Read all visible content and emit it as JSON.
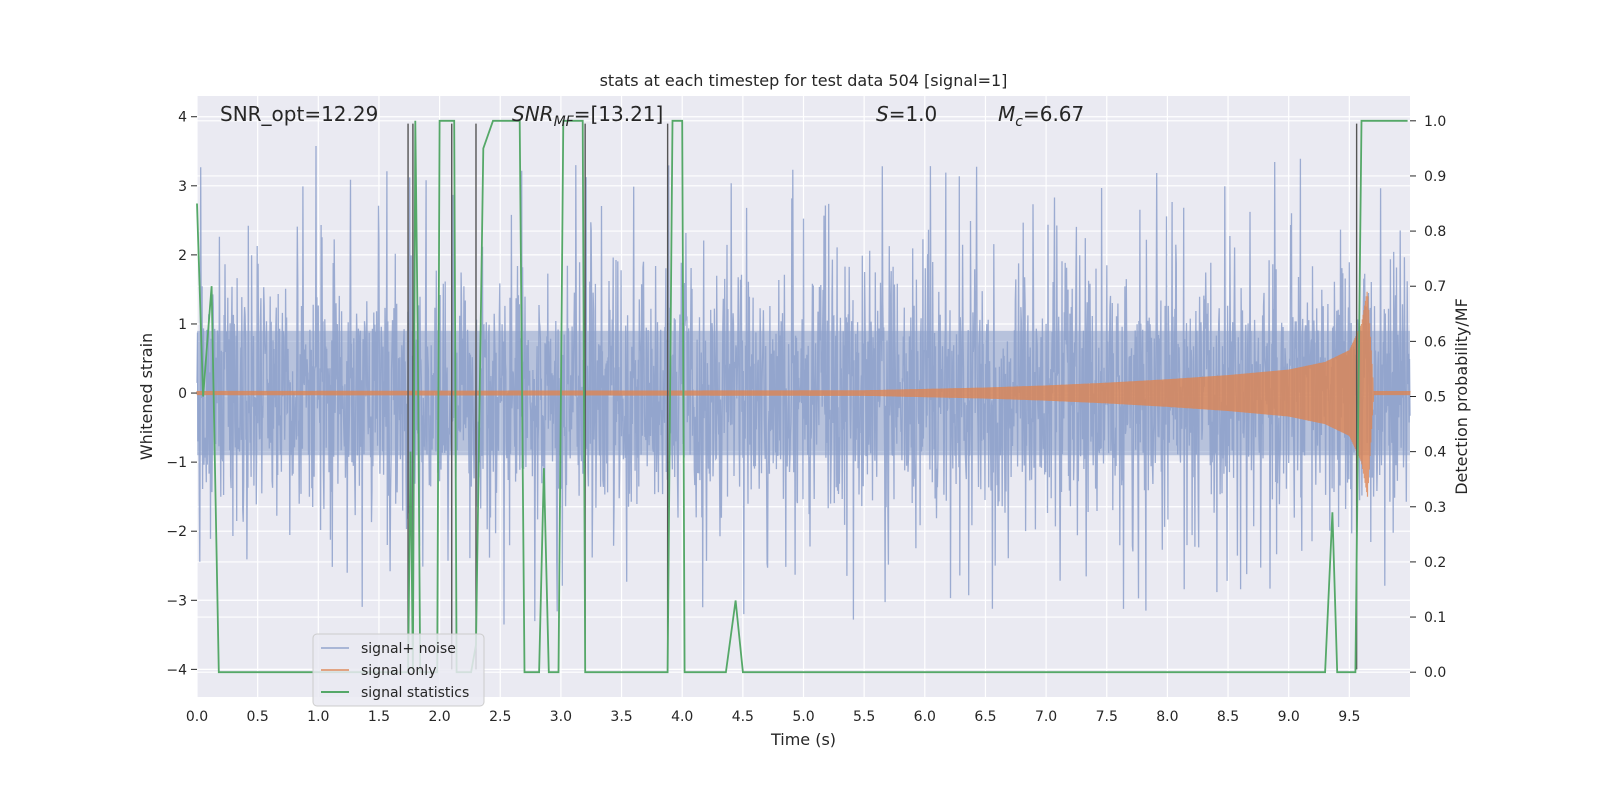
{
  "chart_data": {
    "type": "line",
    "title": "stats at each timestep for test data 504 [signal=1]",
    "xlabel": "Time (s)",
    "ylabel": "Whitened strain",
    "y2label": "Detection probability/MF",
    "xlim": [
      0.0,
      10.0
    ],
    "ylim": [
      -4.4,
      4.3
    ],
    "y2lim": [
      -0.045,
      1.045
    ],
    "x_ticks": [
      0.0,
      0.5,
      1.0,
      1.5,
      2.0,
      2.5,
      3.0,
      3.5,
      4.0,
      4.5,
      5.0,
      5.5,
      6.0,
      6.5,
      7.0,
      7.5,
      8.0,
      8.5,
      9.0,
      9.5
    ],
    "x_tick_labels": [
      "0.0",
      "0.5",
      "1.0",
      "1.5",
      "2.0",
      "2.5",
      "3.0",
      "3.5",
      "4.0",
      "4.5",
      "5.0",
      "5.5",
      "6.0",
      "6.5",
      "7.0",
      "7.5",
      "8.0",
      "8.5",
      "9.0",
      "9.5"
    ],
    "y_ticks": [
      4,
      3,
      2,
      1,
      0,
      -1,
      -2,
      -3,
      -4
    ],
    "y_tick_labels": [
      "4",
      "3",
      "2",
      "1",
      "0",
      "−1",
      "−2",
      "−3",
      "−4"
    ],
    "y2_ticks": [
      1.0,
      0.9,
      0.8,
      0.7,
      0.6,
      0.5,
      0.4,
      0.3,
      0.2,
      0.1,
      0.0
    ],
    "y2_tick_labels": [
      "1.0",
      "0.9",
      "0.8",
      "0.7",
      "0.6",
      "0.5",
      "0.4",
      "0.3",
      "0.2",
      "0.1",
      "0.0"
    ],
    "grid": true,
    "legend_position": "lower-left",
    "annotations": {
      "snr_opt": "SNR_opt=12.29",
      "snr_mf_base": "SNR",
      "snr_mf_sub": "MF",
      "snr_mf_value": "=[13.21]",
      "s_sym": "S",
      "s_value": "=1.0",
      "mc_sym": "M",
      "mc_sub": "c",
      "mc_value": "=6.67"
    },
    "series": [
      {
        "name": "signal+ noise",
        "axis": "left",
        "color": "#8da0cb",
        "noise_band": {
          "x_start": 0.0,
          "x_end": 10.0,
          "typical_amplitude": 1.6,
          "peak_high": 3.9,
          "peak_low": -4.0
        }
      },
      {
        "name": "signal only",
        "axis": "left",
        "color": "#dd8452",
        "chirp_envelope": {
          "x": [
            0.0,
            5.5,
            6.5,
            7.0,
            7.5,
            8.0,
            8.5,
            9.0,
            9.3,
            9.5,
            9.6,
            9.65,
            9.7,
            10.0
          ],
          "amp": [
            0.03,
            0.04,
            0.08,
            0.11,
            0.15,
            0.2,
            0.26,
            0.34,
            0.45,
            0.62,
            1.0,
            1.5,
            0.03,
            0.03
          ]
        }
      },
      {
        "name": "signal statistics",
        "axis": "right",
        "color": "#55a868",
        "x": [
          0.0,
          0.05,
          0.12,
          0.18,
          1.74,
          1.76,
          1.78,
          1.8,
          1.82,
          1.84,
          1.98,
          2.0,
          2.04,
          2.06,
          2.12,
          2.14,
          2.2,
          2.26,
          2.3,
          2.36,
          2.44,
          2.5,
          2.66,
          2.7,
          2.74,
          2.78,
          2.82,
          2.86,
          2.9,
          2.94,
          2.98,
          3.02,
          3.06,
          3.18,
          3.2,
          3.26,
          3.88,
          3.92,
          4.0,
          4.02,
          4.08,
          4.36,
          4.44,
          4.5,
          9.3,
          9.36,
          9.4,
          9.55,
          9.6,
          9.7,
          9.98
        ],
        "y": [
          0.85,
          0.5,
          0.7,
          0.0,
          0.0,
          0.4,
          0.0,
          1.0,
          0.6,
          0.0,
          0.0,
          1.0,
          1.0,
          1.0,
          1.0,
          0.0,
          0.0,
          0.0,
          0.05,
          0.95,
          1.0,
          1.0,
          1.0,
          0.0,
          0.0,
          0.0,
          0.0,
          0.37,
          0.0,
          0.0,
          0.0,
          1.0,
          1.0,
          1.0,
          0.0,
          0.0,
          0.0,
          1.0,
          1.0,
          0.0,
          0.0,
          0.0,
          0.13,
          0.0,
          0.0,
          0.29,
          0.0,
          0.0,
          1.0,
          1.0,
          1.0
        ]
      }
    ],
    "vertical_lines": {
      "color": "#555555",
      "x": [
        1.74,
        1.78,
        2.1,
        2.3,
        3.2,
        3.88,
        9.56
      ],
      "y_top": 3.9,
      "y_bottom": -4.0
    }
  }
}
